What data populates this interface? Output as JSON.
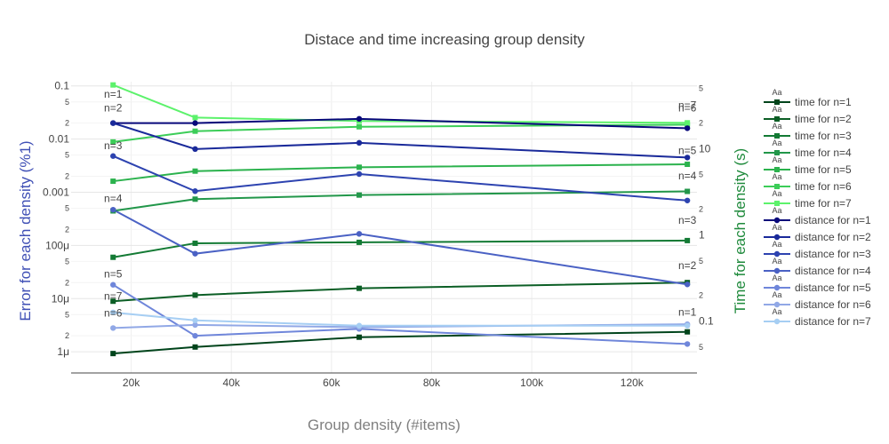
{
  "chart_data": {
    "type": "line",
    "title": "Distace and time increasing group density",
    "xlabel": "Group density (#items)",
    "ylabel_left": "Error for each density (%1)",
    "ylabel_right": "Time for each density (s)",
    "x": [
      16384,
      32768,
      65536,
      131072
    ],
    "xlim": [
      8000,
      133000
    ],
    "x_ticks": [
      20000,
      40000,
      60000,
      80000,
      100000,
      120000
    ],
    "x_tick_labels": [
      "20k",
      "40k",
      "60k",
      "80k",
      "100k",
      "120k"
    ],
    "left_axis": {
      "scale": "log",
      "ylim": [
        4e-07,
        0.12
      ],
      "major_ticks": [
        0.1,
        0.01,
        0.001,
        0.0001,
        1e-05,
        1e-06
      ],
      "major_tick_labels": [
        "0.1",
        "0.01",
        "0.001",
        "100μ",
        "10μ",
        "1μ"
      ],
      "minor_ticks": [
        0.05,
        0.02,
        0.005,
        0.002,
        0.0005,
        0.0002,
        5e-05,
        2e-05,
        5e-06,
        2e-06
      ],
      "minor_tick_labels": [
        "5",
        "2",
        "5",
        "2",
        "5",
        "2",
        "5",
        "2",
        "5",
        "2"
      ]
    },
    "right_axis": {
      "scale": "log",
      "ylim": [
        0.025,
        60
      ],
      "major_ticks": [
        10,
        1,
        0.1
      ],
      "major_tick_labels": [
        "10",
        "1",
        "0.1"
      ],
      "minor_ticks": [
        50,
        20,
        5,
        2,
        0.5,
        0.2,
        0.05
      ],
      "minor_tick_labels": [
        "5",
        "2",
        "5",
        "2",
        "5",
        "2",
        "5"
      ]
    },
    "legend_symbol_label": "Aa",
    "legend_position": "right",
    "grid": true,
    "series": [
      {
        "name": "time for n=1",
        "axis": "right",
        "marker": "square",
        "color": "#00441b",
        "values": [
          0.042,
          0.05,
          0.065,
          0.075
        ]
      },
      {
        "name": "time for n=2",
        "axis": "right",
        "marker": "square",
        "color": "#0b5e25",
        "values": [
          0.17,
          0.2,
          0.24,
          0.28
        ]
      },
      {
        "name": "time for n=3",
        "axis": "right",
        "marker": "square",
        "color": "#137a34",
        "values": [
          0.55,
          0.8,
          0.82,
          0.86
        ]
      },
      {
        "name": "time for n=4",
        "axis": "right",
        "marker": "square",
        "color": "#22974a",
        "values": [
          1.9,
          2.6,
          2.9,
          3.2
        ]
      },
      {
        "name": "time for n=5",
        "axis": "right",
        "marker": "square",
        "color": "#2bb24d",
        "values": [
          4.2,
          5.5,
          6.1,
          6.6
        ]
      },
      {
        "name": "time for n=6",
        "axis": "right",
        "marker": "square",
        "color": "#3ccd58",
        "values": [
          12,
          16,
          18,
          19
        ]
      },
      {
        "name": "time for n=7",
        "axis": "right",
        "marker": "square",
        "color": "#5cf26b",
        "values": [
          55,
          23,
          21,
          20
        ]
      },
      {
        "name": "distance for n=1",
        "axis": "left",
        "marker": "circle",
        "color": "#08087a",
        "values": [
          0.02,
          0.02,
          0.024,
          0.016
        ],
        "annotation": "n=1"
      },
      {
        "name": "distance for n=2",
        "axis": "left",
        "marker": "circle",
        "color": "#1a2a9a",
        "values": [
          0.02,
          0.0065,
          0.0085,
          0.0045
        ],
        "annotation": "n=2"
      },
      {
        "name": "distance for n=3",
        "axis": "left",
        "marker": "circle",
        "color": "#2d43b0",
        "values": [
          0.0048,
          0.00105,
          0.0022,
          0.0007
        ],
        "annotation": "n=3"
      },
      {
        "name": "distance for n=4",
        "axis": "left",
        "marker": "circle",
        "color": "#4a61c4",
        "values": [
          0.00047,
          7e-05,
          0.000165,
          1.85e-05
        ],
        "annotation": "n=4"
      },
      {
        "name": "distance for n=5",
        "axis": "left",
        "marker": "circle",
        "color": "#6f86da",
        "values": [
          1.82e-05,
          2e-06,
          2.7e-06,
          1.4e-06
        ],
        "annotation": "n=5"
      },
      {
        "name": "distance for n=6",
        "axis": "left",
        "marker": "circle",
        "color": "#91a8e6",
        "values": [
          2.8e-06,
          3.2e-06,
          2.9e-06,
          3.3e-06
        ],
        "annotation": "n=6"
      },
      {
        "name": "distance for n=7",
        "axis": "left",
        "marker": "circle",
        "color": "#a6cef3",
        "values": [
          5.5e-06,
          3.9e-06,
          3.1e-06,
          3.1e-06
        ],
        "annotation": "n=7"
      }
    ],
    "left_annotations": [
      {
        "text": "n=1",
        "y": 0.06
      },
      {
        "text": "n=2",
        "y": 0.033
      },
      {
        "text": "n=3",
        "y": 0.0064
      },
      {
        "text": "n=4",
        "y": 0.00065
      },
      {
        "text": "n=5",
        "y": 2.5e-05
      },
      {
        "text": "n=6",
        "y": 4.6e-06
      },
      {
        "text": "n=7",
        "y": 9.5e-06
      }
    ],
    "right_annotations": [
      {
        "text": "n=1",
        "y": 0.115
      },
      {
        "text": "n=2",
        "y": 0.4
      },
      {
        "text": "n=3",
        "y": 1.35
      },
      {
        "text": "n=4",
        "y": 4.4
      },
      {
        "text": "n=5",
        "y": 8.7
      },
      {
        "text": "n=6",
        "y": 27
      },
      {
        "text": "n=7",
        "y": 29
      }
    ]
  }
}
